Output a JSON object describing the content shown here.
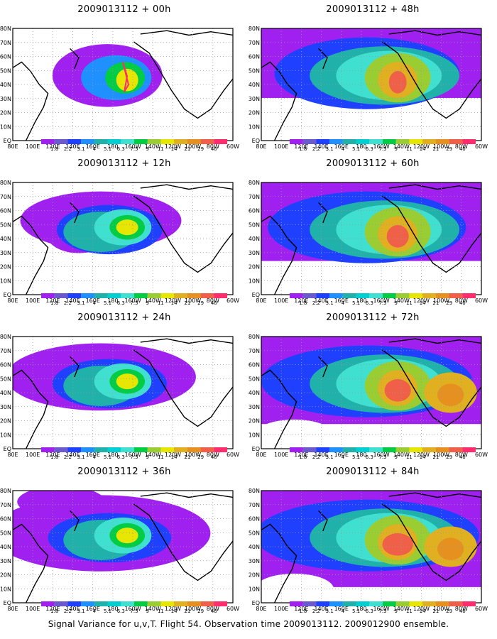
{
  "colorbar": {
    "colors": [
      "#a020f0",
      "#6a5acd",
      "#2040ff",
      "#1e90ff",
      "#20b2aa",
      "#00ced1",
      "#40e0d0",
      "#00cc44",
      "#9acd32",
      "#e6e600",
      "#e0b020",
      "#e69020",
      "#f06048",
      "#ff2d6e"
    ],
    "labels": [
      "1.8",
      "2.2",
      "3.1",
      "4",
      "5.1",
      "6.3",
      "7.5",
      "9",
      "11",
      "14",
      "21",
      "29",
      "40"
    ]
  },
  "axes": {
    "x_ticks": [
      "80E",
      "100E",
      "120E",
      "140E",
      "160E",
      "180",
      "160W",
      "140W",
      "120W",
      "100W",
      "80W",
      "60W"
    ],
    "y_ticks": [
      "EQ",
      "10N",
      "20N",
      "30N",
      "40N",
      "50N",
      "60N",
      "70N",
      "80N"
    ]
  },
  "panels": [
    {
      "title": "2009013112 + 00h",
      "intensity": 0
    },
    {
      "title": "2009013112 + 12h",
      "intensity": 1
    },
    {
      "title": "2009013112 + 24h",
      "intensity": 2
    },
    {
      "title": "2009013112 + 36h",
      "intensity": 3
    },
    {
      "title": "2009013112 + 48h",
      "intensity": 4
    },
    {
      "title": "2009013112 + 60h",
      "intensity": 5
    },
    {
      "title": "2009013112 + 72h",
      "intensity": 6
    },
    {
      "title": "2009013112 + 84h",
      "intensity": 7
    }
  ],
  "footer": "Signal Variance for u,v,T. Flight 54. Observation time 2009013112. 2009012900 ensemble."
}
